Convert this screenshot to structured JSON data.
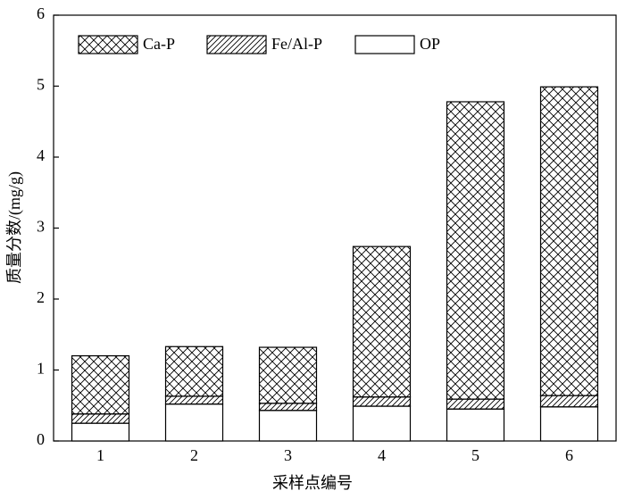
{
  "chart_data": {
    "type": "stacked-bar",
    "x_label": "采样点编号",
    "y_label": "质量分数/(mg/g)",
    "categories": [
      "1",
      "2",
      "3",
      "4",
      "5",
      "6"
    ],
    "series": [
      {
        "name": "Ca-P",
        "color": "#000000",
        "pattern": "crosshatch",
        "values": [
          0.82,
          0.7,
          0.79,
          2.12,
          4.19,
          4.35
        ]
      },
      {
        "name": "Fe/Al-P",
        "color": "#000000",
        "pattern": "diagonal",
        "values": [
          0.13,
          0.11,
          0.1,
          0.13,
          0.14,
          0.16
        ]
      },
      {
        "name": "OP",
        "color": "#000000",
        "pattern": "none",
        "values": [
          0.25,
          0.52,
          0.43,
          0.49,
          0.45,
          0.48
        ]
      }
    ],
    "stack_order": "bottom-up-reverse",
    "ylim": [
      0,
      6
    ],
    "yticks": [
      0,
      1,
      2,
      3,
      4,
      5,
      6
    ],
    "grid": false,
    "legend": "top-left"
  }
}
